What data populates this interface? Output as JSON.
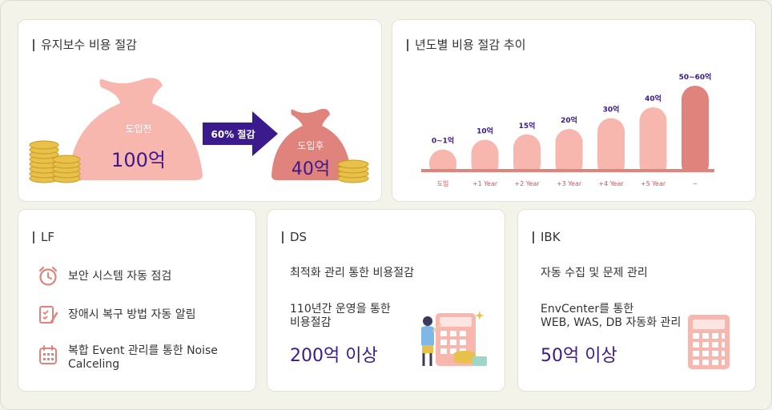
{
  "cost_card": {
    "title": "유지보수 비용 절감",
    "before_label": "도입전",
    "before_value": "100억",
    "arrow_label": "60% 절감",
    "after_label": "도입후",
    "after_value": "40억",
    "icons": [
      "money-bag-icon",
      "coin-stack-icon",
      "arrow-right-icon"
    ]
  },
  "trend_card": {
    "title": "년도별 비용 절감 추이"
  },
  "chart_data": {
    "type": "bar",
    "categories": [
      "도입",
      "+1 Year",
      "+2 Year",
      "+3 Year",
      "+4 Year",
      "+5 Year",
      "~"
    ],
    "values": [
      1,
      10,
      15,
      20,
      30,
      40,
      60
    ],
    "data_labels": [
      "0~1억",
      "10억",
      "15억",
      "20억",
      "30억",
      "40억",
      "50~60억"
    ],
    "colors": {
      "bar": "#f7b7ae",
      "last_bar": "#e0837d",
      "baseline": "#e0837d"
    },
    "grid": false
  },
  "lf_card": {
    "title": "LF",
    "items": [
      {
        "icon": "alarm-clock-icon",
        "label": "보안 시스템 자동 점검"
      },
      {
        "icon": "checklist-pen-icon",
        "label": "장애시 복구 방법 자동 알림"
      },
      {
        "icon": "calendar-icon",
        "label": "복합 Event 관리를 통한 Noise\nCalceling"
      }
    ]
  },
  "ds_card": {
    "title": "DS",
    "line1": "최적화 관리 통한 비용절감",
    "line2a": "110년간 운영을 통한",
    "line2b": "비용절감",
    "value": "200억 이상",
    "illustration": "person-calculator-icon"
  },
  "ibk_card": {
    "title": "IBK",
    "line1": "자동 수집 및 문제 관리",
    "line2a": "EnvCenter를 통한",
    "line2b": "WEB, WAS, DB 자동화 관리",
    "value": "50억 이상",
    "illustration": "calculator-icon"
  },
  "colors": {
    "accent_purple": "#3a1a8c",
    "bag_pink": "#f7b7ae",
    "bag_dark": "#e0837d",
    "coin_gold": "#e8c14a"
  }
}
